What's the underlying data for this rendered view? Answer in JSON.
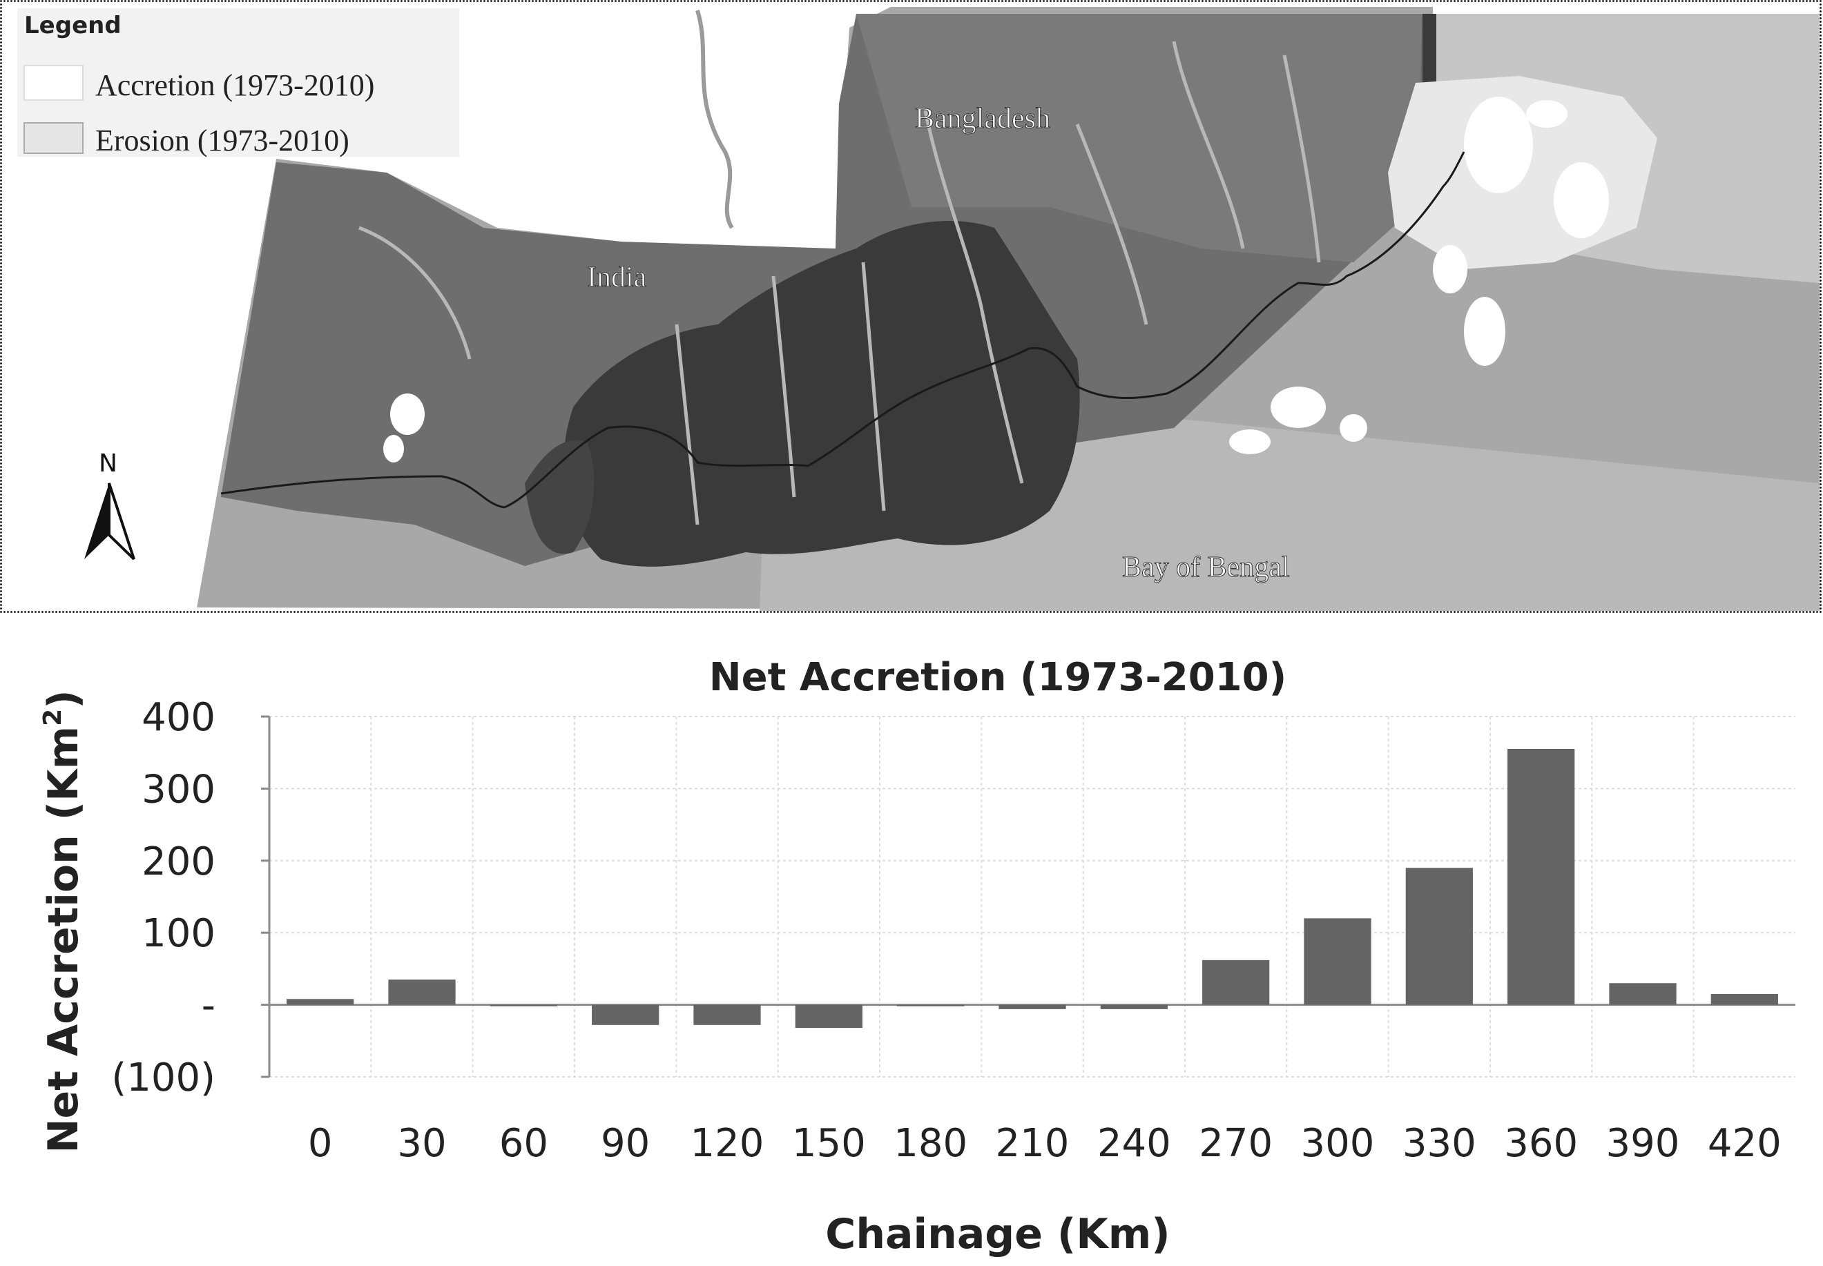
{
  "map": {
    "legend": {
      "title": "Legend",
      "items": [
        {
          "label": "Accretion (1973-2010)",
          "swatch": "#ffffff"
        },
        {
          "label": "Erosion (1973-2010)",
          "swatch": "#e6e6e6"
        }
      ]
    },
    "north_label": "N",
    "place_labels": {
      "bangladesh": "Bangladesh",
      "india": "India",
      "bay": "Bay of Bengal"
    },
    "colors": {
      "land": "#6e6e6e",
      "mangrove": "#3a3a3a",
      "water": "#a8a8a8",
      "border_line": "#1a1a1a"
    }
  },
  "chart_data": {
    "type": "bar",
    "title": "Net Accretion (1973-2010)",
    "xlabel": "Chainage (Km)",
    "ylabel": "Net Accretion (Km²)",
    "ylabel_main": "Net Accretion (Km",
    "ylabel_sup": "2",
    "ylabel_close": ")",
    "categories": [
      "0",
      "30",
      "60",
      "90",
      "120",
      "150",
      "180",
      "210",
      "240",
      "270",
      "300",
      "330",
      "360",
      "390",
      "420"
    ],
    "values": [
      8,
      35,
      -2,
      -28,
      -28,
      -32,
      -2,
      -6,
      -6,
      62,
      120,
      190,
      355,
      30,
      15
    ],
    "ylim": [
      -100,
      400
    ],
    "yticks": [
      {
        "value": 400,
        "label": "400"
      },
      {
        "value": 300,
        "label": "300"
      },
      {
        "value": 200,
        "label": "200"
      },
      {
        "value": 100,
        "label": "100"
      },
      {
        "value": 0,
        "label": "-"
      },
      {
        "value": -100,
        "label": "(100)"
      }
    ],
    "grid": true,
    "bar_color": "#646464"
  }
}
